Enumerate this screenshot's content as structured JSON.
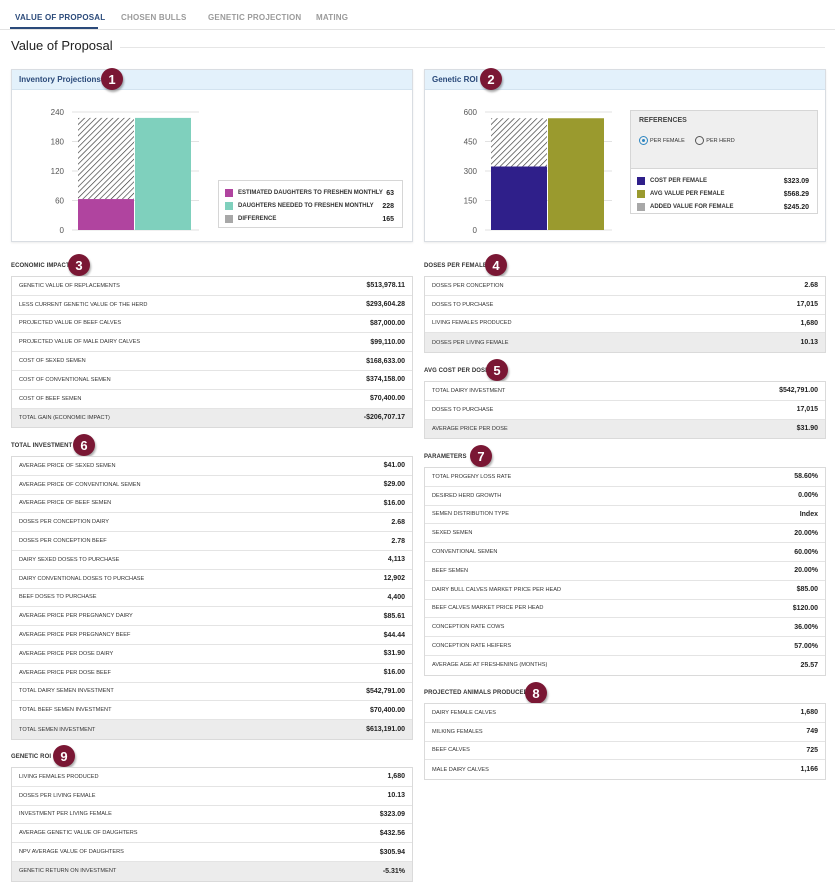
{
  "tabs": [
    "VALUE OF PROPOSAL",
    "CHOSEN BULLS",
    "GENETIC PROJECTION",
    "MATING"
  ],
  "page_title": "Value of Proposal",
  "colors": {
    "accent": "#2b4a7a",
    "badge": "#7a1734",
    "magenta": "#b0449f",
    "teal": "#7fd0bd",
    "navy": "#2f1f8a",
    "olive": "#9a9a2e",
    "gray": "#a8a8a8"
  },
  "badges": [
    "1",
    "2",
    "3",
    "4",
    "5",
    "6",
    "7",
    "8",
    "9"
  ],
  "inventory": {
    "title": "Inventory Projections",
    "legend": [
      {
        "label": "ESTIMATED DAUGHTERS TO FRESHEN MONTHLY",
        "value": "63",
        "color": "#b0449f"
      },
      {
        "label": "DAUGHTERS NEEDED TO FRESHEN MONTHLY",
        "value": "228",
        "color": "#7fd0bd"
      },
      {
        "label": "DIFFERENCE",
        "value": "165",
        "color": "#a8a8a8"
      }
    ]
  },
  "genetic_roi_chart": {
    "title": "Genetic ROI",
    "references_title": "REFERENCES",
    "radio_options": [
      {
        "label": "PER FEMALE",
        "selected": true
      },
      {
        "label": "PER HERD",
        "selected": false
      }
    ],
    "legend": [
      {
        "label": "COST PER FEMALE",
        "value": "$323.09",
        "color": "#2f1f8a"
      },
      {
        "label": "AVG VALUE PER FEMALE",
        "value": "$568.29",
        "color": "#9a9a2e"
      },
      {
        "label": "ADDED VALUE FOR FEMALE",
        "value": "$245.20",
        "color": "#a8a8a8"
      }
    ]
  },
  "chart_data": [
    {
      "type": "bar",
      "categories": [
        "",
        ""
      ],
      "series": [
        {
          "name": "ESTIMATED DAUGHTERS TO FRESHEN MONTHLY",
          "values": [
            63,
            0
          ]
        },
        {
          "name": "DIFFERENCE",
          "values": [
            165,
            0
          ]
        },
        {
          "name": "DAUGHTERS NEEDED TO FRESHEN MONTHLY",
          "values": [
            0,
            228
          ]
        }
      ],
      "stacked": true,
      "ylim": [
        0,
        240
      ],
      "yticks": [
        0,
        60,
        120,
        180,
        240
      ]
    },
    {
      "type": "bar",
      "categories": [
        "",
        ""
      ],
      "series": [
        {
          "name": "COST PER FEMALE",
          "values": [
            323.09,
            0
          ]
        },
        {
          "name": "ADDED VALUE FOR FEMALE",
          "values": [
            245.2,
            0
          ]
        },
        {
          "name": "AVG VALUE PER FEMALE",
          "values": [
            0,
            568.29
          ]
        }
      ],
      "stacked": true,
      "ylim": [
        0,
        600
      ],
      "yticks": [
        0,
        150,
        300,
        450,
        600
      ]
    }
  ],
  "economic_impact": {
    "title": "ECONOMIC IMPACT",
    "rows": [
      {
        "label": "GENETIC VALUE OF REPLACEMENTS",
        "value": "$513,978.11"
      },
      {
        "label": "LESS CURRENT GENETIC VALUE OF THE HERD",
        "value": "$293,604.28"
      },
      {
        "label": "PROJECTED VALUE OF BEEF CALVES",
        "value": "$87,000.00"
      },
      {
        "label": "PROJECTED VALUE OF MALE DAIRY CALVES",
        "value": "$99,110.00"
      },
      {
        "label": "COST OF SEXED SEMEN",
        "value": "$168,633.00"
      },
      {
        "label": "COST OF CONVENTIONAL SEMEN",
        "value": "$374,158.00"
      },
      {
        "label": "COST OF BEEF SEMEN",
        "value": "$70,400.00"
      },
      {
        "label": "TOTAL GAIN (ECONOMIC IMPACT)",
        "value": "-$206,707.17"
      }
    ]
  },
  "doses_per_female": {
    "title": "DOSES PER FEMALE",
    "rows": [
      {
        "label": "DOSES PER CONCEPTION",
        "value": "2.68"
      },
      {
        "label": "DOSES TO PURCHASE",
        "value": "17,015"
      },
      {
        "label": "LIVING FEMALES PRODUCED",
        "value": "1,680"
      },
      {
        "label": "DOSES PER LIVING FEMALE",
        "value": "10.13"
      }
    ]
  },
  "avg_cost_per_dose": {
    "title": "AVG COST PER DOSE",
    "rows": [
      {
        "label": "TOTAL DAIRY INVESTMENT",
        "value": "$542,791.00"
      },
      {
        "label": "DOSES TO PURCHASE",
        "value": "17,015"
      },
      {
        "label": "AVERAGE PRICE PER DOSE",
        "value": "$31.90"
      }
    ]
  },
  "total_investment": {
    "title": "TOTAL INVESTMENT",
    "rows": [
      {
        "label": "AVERAGE PRICE OF SEXED SEMEN",
        "value": "$41.00"
      },
      {
        "label": "AVERAGE PRICE OF CONVENTIONAL SEMEN",
        "value": "$29.00"
      },
      {
        "label": "AVERAGE PRICE OF BEEF SEMEN",
        "value": "$16.00"
      },
      {
        "label": "DOSES PER CONCEPTION DAIRY",
        "value": "2.68"
      },
      {
        "label": "DOSES PER CONCEPTION BEEF",
        "value": "2.78"
      },
      {
        "label": "DAIRY SEXED DOSES TO PURCHASE",
        "value": "4,113"
      },
      {
        "label": "DAIRY CONVENTIONAL DOSES TO PURCHASE",
        "value": "12,902"
      },
      {
        "label": "BEEF DOSES TO PURCHASE",
        "value": "4,400"
      },
      {
        "label": "AVERAGE PRICE PER PREGNANCY DAIRY",
        "value": "$85.61"
      },
      {
        "label": "AVERAGE PRICE PER PREGNANCY BEEF",
        "value": "$44.44"
      },
      {
        "label": "AVERAGE PRICE PER DOSE DAIRY",
        "value": "$31.90"
      },
      {
        "label": "AVERAGE PRICE PER DOSE BEEF",
        "value": "$16.00"
      },
      {
        "label": "TOTAL DAIRY SEMEN INVESTMENT",
        "value": "$542,791.00"
      },
      {
        "label": "TOTAL BEEF SEMEN INVESTMENT",
        "value": "$70,400.00"
      },
      {
        "label": "TOTAL SEMEN INVESTMENT",
        "value": "$613,191.00"
      }
    ]
  },
  "parameters": {
    "title": "PARAMETERS",
    "rows": [
      {
        "label": "TOTAL PROGENY LOSS RATE",
        "value": "58.60%"
      },
      {
        "label": "DESIRED HERD GROWTH",
        "value": "0.00%"
      },
      {
        "label": "SEMEN DISTRIBUTION TYPE",
        "value": "Index"
      },
      {
        "label": "SEXED SEMEN",
        "value": "20.00%"
      },
      {
        "label": "CONVENTIONAL SEMEN",
        "value": "60.00%"
      },
      {
        "label": "BEEF SEMEN",
        "value": "20.00%"
      },
      {
        "label": "DAIRY BULL CALVES MARKET PRICE PER HEAD",
        "value": "$85.00"
      },
      {
        "label": "BEEF CALVES MARKET PRICE PER HEAD",
        "value": "$120.00"
      },
      {
        "label": "CONCEPTION RATE COWS",
        "value": "36.00%"
      },
      {
        "label": "CONCEPTION RATE HEIFERS",
        "value": "57.00%"
      },
      {
        "label": "AVERAGE AGE AT FRESHENING (MONTHS)",
        "value": "25.57"
      }
    ]
  },
  "projected_animals": {
    "title": "PROJECTED ANIMALS PRODUCED",
    "rows": [
      {
        "label": "DAIRY FEMALE CALVES",
        "value": "1,680"
      },
      {
        "label": "MILKING FEMALES",
        "value": "749"
      },
      {
        "label": "BEEF CALVES",
        "value": "725"
      },
      {
        "label": "MALE DAIRY CALVES",
        "value": "1,166"
      }
    ]
  },
  "genetic_roi_table": {
    "title": "GENETIC ROI",
    "rows": [
      {
        "label": "LIVING FEMALES PRODUCED",
        "value": "1,680"
      },
      {
        "label": "DOSES PER LIVING FEMALE",
        "value": "10.13"
      },
      {
        "label": "INVESTMENT PER LIVING FEMALE",
        "value": "$323.09"
      },
      {
        "label": "AVERAGE GENETIC VALUE OF DAUGHTERS",
        "value": "$432.56"
      },
      {
        "label": "NPV AVERAGE VALUE OF DAUGHTERS",
        "value": "$305.94"
      },
      {
        "label": "GENETIC RETURN ON INVESTMENT",
        "value": "-5.31%"
      }
    ]
  }
}
